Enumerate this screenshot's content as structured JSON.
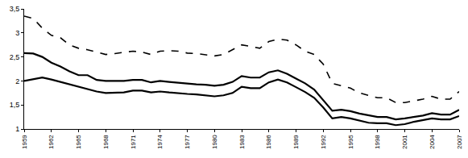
{
  "chart_data": {
    "type": "line",
    "x": [
      1959,
      1960,
      1961,
      1962,
      1963,
      1964,
      1965,
      1966,
      1967,
      1968,
      1969,
      1970,
      1971,
      1972,
      1973,
      1974,
      1975,
      1976,
      1977,
      1978,
      1979,
      1980,
      1981,
      1982,
      1983,
      1984,
      1985,
      1986,
      1987,
      1988,
      1989,
      1990,
      1991,
      1992,
      1993,
      1994,
      1995,
      1996,
      1997,
      1998,
      1999,
      2000,
      2001,
      2002,
      2003,
      2004,
      2005,
      2006,
      2007
    ],
    "series": [
      {
        "color": "#000000",
        "line_style": "dashed",
        "values": [
          3.35,
          3.3,
          3.1,
          2.95,
          2.9,
          2.75,
          2.68,
          2.65,
          2.6,
          2.55,
          2.57,
          2.6,
          2.62,
          2.6,
          2.55,
          2.62,
          2.63,
          2.62,
          2.58,
          2.57,
          2.55,
          2.52,
          2.55,
          2.65,
          2.75,
          2.72,
          2.68,
          2.82,
          2.87,
          2.85,
          2.75,
          2.62,
          2.55,
          2.35,
          1.95,
          1.9,
          1.85,
          1.75,
          1.7,
          1.65,
          1.65,
          1.55,
          1.55,
          1.58,
          1.62,
          1.68,
          1.62,
          1.62,
          1.78
        ]
      },
      {
        "color": "#000000",
        "line_style": "solid",
        "values": [
          2.58,
          2.57,
          2.5,
          2.38,
          2.3,
          2.2,
          2.12,
          2.12,
          2.02,
          2.0,
          2.0,
          2.0,
          2.02,
          2.02,
          1.97,
          2.0,
          1.98,
          1.96,
          1.95,
          1.93,
          1.92,
          1.9,
          1.92,
          1.98,
          2.1,
          2.07,
          2.07,
          2.18,
          2.22,
          2.15,
          2.05,
          1.95,
          1.82,
          1.6,
          1.38,
          1.4,
          1.37,
          1.32,
          1.28,
          1.25,
          1.25,
          1.2,
          1.22,
          1.25,
          1.28,
          1.33,
          1.3,
          1.3,
          1.4
        ]
      },
      {
        "color": "#000000",
        "line_style": "solid",
        "values": [
          2.0,
          2.03,
          2.07,
          2.03,
          1.98,
          1.93,
          1.87,
          1.83,
          1.78,
          1.75,
          1.75,
          1.76,
          1.8,
          1.8,
          1.76,
          1.78,
          1.76,
          1.74,
          1.73,
          1.72,
          1.7,
          1.68,
          1.7,
          1.75,
          1.88,
          1.85,
          1.85,
          1.97,
          2.03,
          1.97,
          1.87,
          1.77,
          1.65,
          1.45,
          1.22,
          1.25,
          1.22,
          1.17,
          1.13,
          1.12,
          1.12,
          1.08,
          1.1,
          1.15,
          1.18,
          1.22,
          1.2,
          1.2,
          1.27
        ]
      }
    ],
    "xlim": [
      1959,
      2007
    ],
    "xticks": [
      1959,
      1962,
      1965,
      1968,
      1971,
      1974,
      1977,
      1980,
      1983,
      1986,
      1989,
      1992,
      1995,
      1998,
      2001,
      2004,
      2007
    ],
    "ylim": [
      1,
      3.5
    ],
    "yticks": [
      1,
      {
        "value": 1.5,
        "label": "1,5"
      },
      2,
      {
        "value": 2.5,
        "label": "2,5"
      },
      3,
      {
        "value": 3.5,
        "label": "3,5"
      }
    ],
    "grid": false
  }
}
